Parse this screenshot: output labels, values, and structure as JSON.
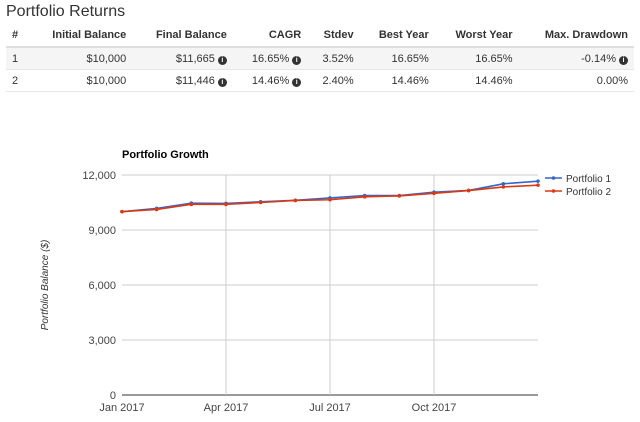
{
  "section_title": "Portfolio Returns",
  "table": {
    "headers": [
      "#",
      "Initial Balance",
      "Final Balance",
      "CAGR",
      "Stdev",
      "Best Year",
      "Worst Year",
      "Max. Drawdown"
    ],
    "rows": [
      [
        "1",
        "$10,000",
        "$11,665",
        "16.65%",
        "3.52%",
        "16.65%",
        "16.65%",
        "-0.14%"
      ],
      [
        "2",
        "$10,000",
        "$11,446",
        "14.46%",
        "2.40%",
        "14.46%",
        "14.46%",
        "0.00%"
      ]
    ],
    "info_icon_columns": [
      2,
      3,
      7
    ],
    "info_icon_rows": {
      "0": [
        2,
        3,
        7
      ],
      "1": [
        2,
        3
      ]
    }
  },
  "chart_data": {
    "type": "line",
    "title": "Portfolio Growth",
    "ylabel": "Portfolio Balance ($)",
    "xlabel": "",
    "x": [
      "2017-01",
      "2017-02",
      "2017-03",
      "2017-04",
      "2017-05",
      "2017-06",
      "2017-07",
      "2017-08",
      "2017-09",
      "2017-10",
      "2017-11",
      "2017-12",
      "2018-01"
    ],
    "x_tick_labels": [
      "Jan 2017",
      "Apr 2017",
      "Jul 2017",
      "Oct 2017"
    ],
    "x_tick_index": [
      0,
      3,
      6,
      9
    ],
    "y_ticks": [
      "0",
      "3,000",
      "6,000",
      "9,000",
      "12,000"
    ],
    "y_tick_values": [
      0,
      3000,
      6000,
      9000,
      12000
    ],
    "ylim": [
      0,
      12000
    ],
    "grid": true,
    "legend_position": "right",
    "series": [
      {
        "name": "Portfolio 1",
        "color": "#3366cc",
        "values": [
          10000,
          10180,
          10460,
          10450,
          10540,
          10620,
          10750,
          10880,
          10880,
          11060,
          11160,
          11520,
          11665
        ]
      },
      {
        "name": "Portfolio 2",
        "color": "#dc3912",
        "values": [
          10000,
          10120,
          10400,
          10400,
          10500,
          10610,
          10650,
          10810,
          10860,
          11000,
          11150,
          11350,
          11446
        ]
      }
    ]
  }
}
